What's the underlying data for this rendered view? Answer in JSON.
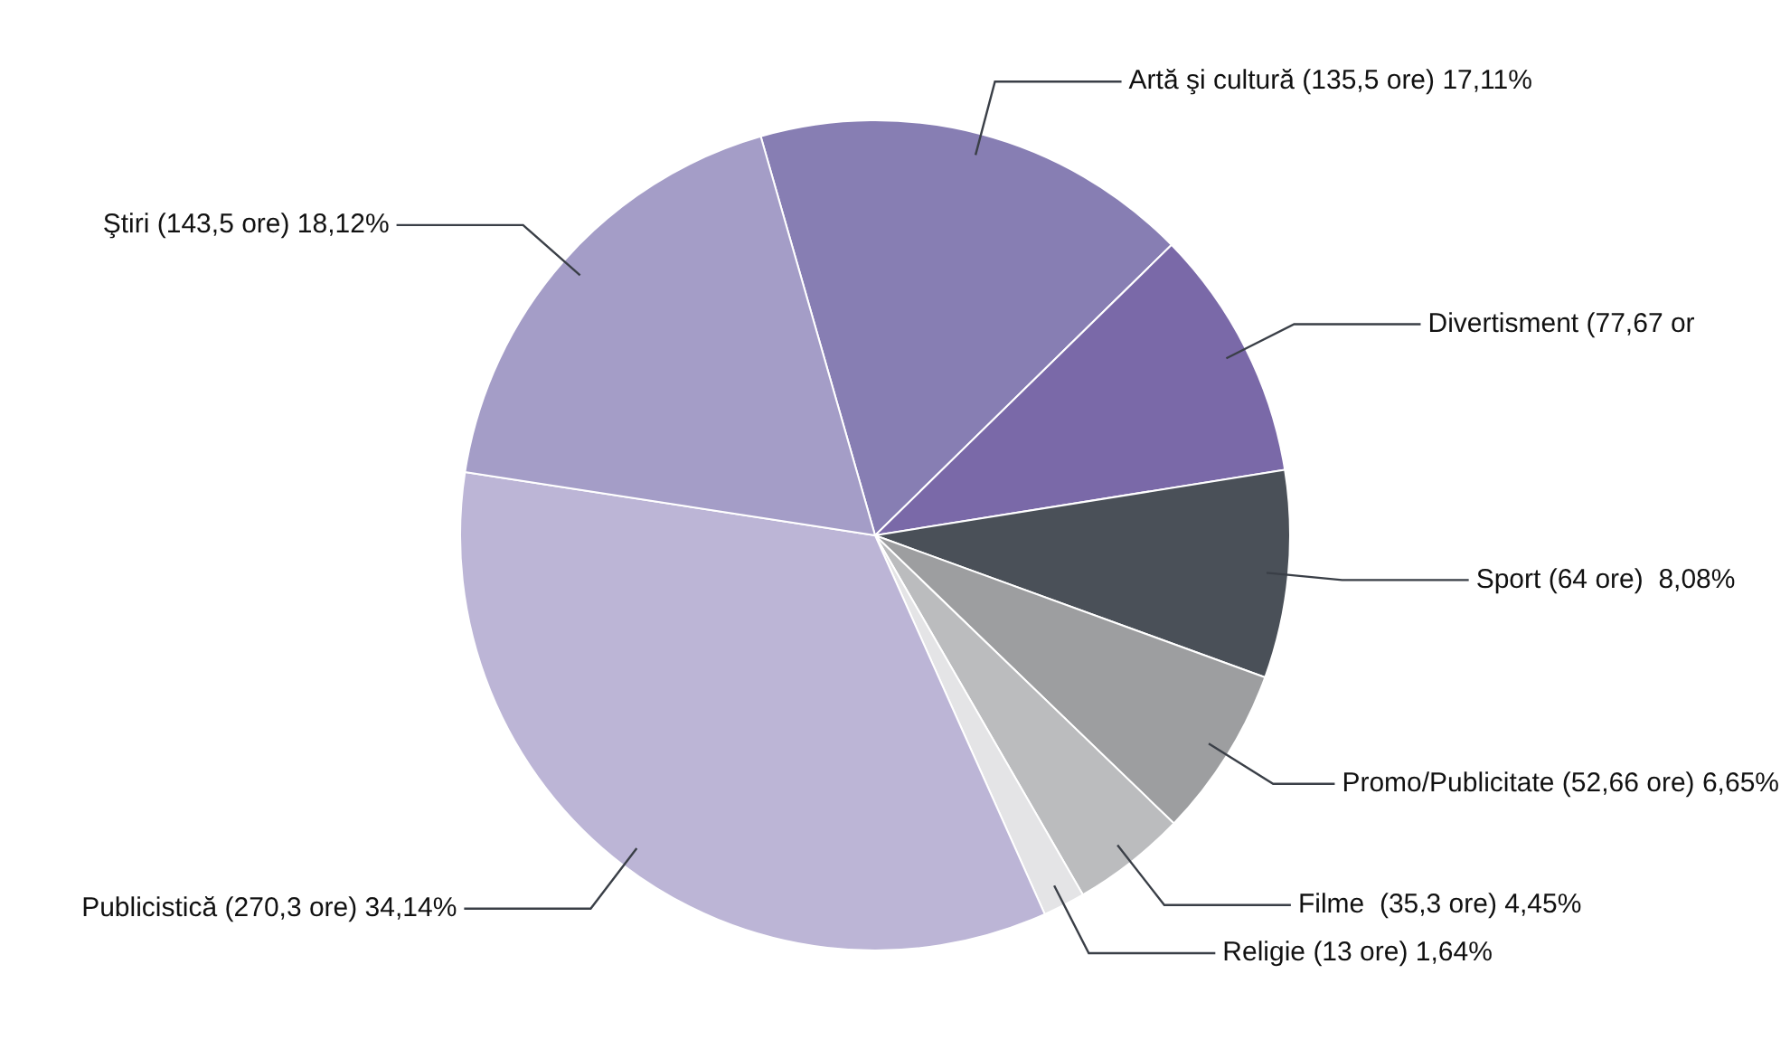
{
  "chart_data": {
    "type": "pie",
    "categories": [
      "Artă şi cultură (135,5 ore) 17,11%",
      "Divertisment (77,67 or",
      "Sport (64 ore)  8,08%",
      "Promo/Publicitate (52,66 ore) 6,65%",
      "Filme  (35,3 ore) 4,45%",
      "Religie (13 ore) 1,64%",
      "Publicistică (270,3 ore) 34,14%",
      "Ştiri (143,5 ore) 18,12%"
    ],
    "values": [
      17.11,
      9.81,
      8.08,
      6.65,
      4.45,
      1.64,
      34.14,
      18.12
    ],
    "colors": [
      "#877eb3",
      "#7a69a8",
      "#4a5058",
      "#9d9ea0",
      "#bbbcbe",
      "#e4e4e6",
      "#bcb5d6",
      "#a49dc7"
    ]
  }
}
